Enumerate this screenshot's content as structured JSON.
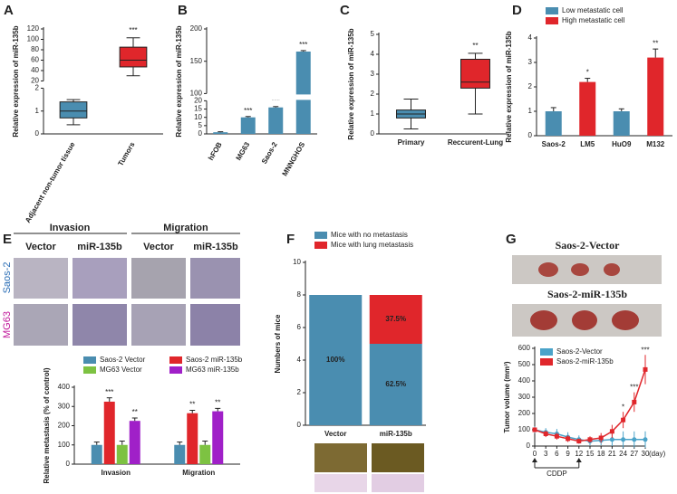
{
  "chart_data": [
    {
      "panel": "A",
      "type": "box",
      "ylabel": "Relative expression of miR-135b",
      "categories": [
        "Adjacent non-tumor tissue",
        "Tumors"
      ],
      "boxes": [
        {
          "min": 0.4,
          "q1": 0.7,
          "median": 1.0,
          "q3": 1.4,
          "max": 1.5
        },
        {
          "min": 30,
          "q1": 47,
          "median": 60,
          "q3": 85,
          "max": 103
        }
      ],
      "colors": [
        "#4a8db0",
        "#e0262b"
      ],
      "annotations": [
        null,
        "***"
      ],
      "ylim": [
        0,
        120
      ],
      "ybreak": [
        2,
        20
      ],
      "yticks": [
        0,
        1,
        2,
        20,
        40,
        60,
        80,
        100,
        120
      ]
    },
    {
      "panel": "B",
      "type": "bar",
      "ylabel": "Relative expression of miR-135b",
      "categories": [
        "hFOB",
        "MG63",
        "Saos-2",
        "MNNGHOS"
      ],
      "series": [
        {
          "color": "#4a8db0",
          "values": [
            1,
            10,
            16,
            165
          ],
          "errors": [
            0.3,
            0.5,
            0.5,
            1.5
          ],
          "annotations": [
            null,
            "***",
            "***",
            "***"
          ]
        }
      ],
      "ylim": [
        0,
        200
      ],
      "ybreak": [
        20,
        100
      ],
      "yticks": [
        0,
        5,
        10,
        15,
        20,
        100,
        150,
        200
      ]
    },
    {
      "panel": "C",
      "type": "box",
      "ylabel": "Relative expression of miR-135b",
      "categories": [
        "Primary",
        "Reccurent-Lung"
      ],
      "boxes": [
        {
          "min": 0.25,
          "q1": 0.8,
          "median": 1.0,
          "q3": 1.2,
          "max": 1.75
        },
        {
          "min": 1.0,
          "q1": 2.3,
          "median": 2.6,
          "q3": 3.75,
          "max": 4.05
        }
      ],
      "colors": [
        "#4a8db0",
        "#e0262b"
      ],
      "annotations": [
        null,
        "**"
      ],
      "ylim": [
        0,
        5
      ],
      "yticks": [
        0,
        1,
        2,
        3,
        4,
        5
      ]
    },
    {
      "panel": "D",
      "type": "bar",
      "ylabel": "Relative expression of miR-135b",
      "legend": "top",
      "categories": [
        "Saos-2",
        "LM5",
        "HuO9",
        "M132"
      ],
      "series": [
        {
          "name": "Low metastatic cell",
          "color": "#4a8db0",
          "values": [
            1.0,
            null,
            1.0,
            null
          ],
          "errors": [
            0.15,
            null,
            0.1,
            null
          ],
          "annotations": [
            null,
            null,
            null,
            null
          ]
        },
        {
          "name": "High metastatic cell",
          "color": "#e0262b",
          "values": [
            null,
            2.2,
            null,
            3.2
          ],
          "errors": [
            null,
            0.15,
            null,
            0.35
          ],
          "annotations": [
            null,
            "*",
            null,
            "**"
          ]
        }
      ],
      "ylim": [
        0,
        4
      ],
      "yticks": [
        0,
        1,
        2,
        3,
        4
      ]
    },
    {
      "panel": "E",
      "type": "bar",
      "ylabel": "Relative metastasis (% of control)",
      "legend": "top",
      "categories": [
        "Invasion",
        "Migration"
      ],
      "series": [
        {
          "name": "Saos-2 Vector",
          "color": "#4a8db0",
          "values": [
            100,
            100
          ],
          "errors": [
            15,
            15
          ],
          "annotations": [
            null,
            null
          ]
        },
        {
          "name": "Saos-2 miR-135b",
          "color": "#e0262b",
          "values": [
            325,
            265
          ],
          "errors": [
            20,
            15
          ],
          "annotations": [
            "***",
            "**"
          ]
        },
        {
          "name": "MG63 Vector",
          "color": "#7dc242",
          "values": [
            100,
            100
          ],
          "errors": [
            20,
            20
          ],
          "annotations": [
            null,
            null
          ]
        },
        {
          "name": "MG63 miR-135b",
          "color": "#a020c8",
          "values": [
            225,
            275
          ],
          "errors": [
            15,
            15
          ],
          "annotations": [
            "**",
            "**"
          ]
        }
      ],
      "ylim": [
        0,
        400
      ],
      "yticks": [
        0,
        100,
        200,
        300,
        400
      ]
    },
    {
      "panel": "F",
      "type": "stacked_bar",
      "ylabel": "Numbers of mice",
      "legend": "top",
      "categories": [
        "Vector",
        "miR-135b"
      ],
      "series": [
        {
          "name": "Mice with no metastasis",
          "color": "#4a8db0",
          "values": [
            8,
            5
          ],
          "labels": [
            "100%",
            "62.5%"
          ]
        },
        {
          "name": "Mice with lung metastasis",
          "color": "#e0262b",
          "values": [
            0,
            3
          ],
          "labels": [
            null,
            "37.5%"
          ]
        }
      ],
      "ylim": [
        0,
        10
      ],
      "yticks": [
        0,
        2,
        4,
        6,
        8,
        10
      ]
    },
    {
      "panel": "G",
      "type": "line",
      "ylabel": "Tumor volume (mm³)",
      "xlabel": "(day)",
      "legend": "upper left",
      "treatment": "CDDP",
      "treatment_period": [
        0,
        12
      ],
      "x": [
        0,
        3,
        6,
        9,
        12,
        15,
        18,
        21,
        24,
        27,
        30
      ],
      "series": [
        {
          "name": "Saos-2-Vector",
          "color": "#4aa3c9",
          "marker": "circle",
          "values": [
            100,
            85,
            75,
            55,
            40,
            30,
            35,
            40,
            40,
            40,
            40
          ],
          "errors": [
            20,
            25,
            30,
            30,
            25,
            25,
            30,
            40,
            50,
            50,
            50
          ],
          "annotations": [
            null,
            null,
            null,
            null,
            null,
            null,
            null,
            null,
            null,
            null,
            null
          ]
        },
        {
          "name": "Saos-2-miR-135b",
          "color": "#e0262b",
          "marker": "square",
          "values": [
            100,
            75,
            60,
            45,
            30,
            40,
            50,
            90,
            160,
            270,
            470
          ],
          "errors": [
            15,
            20,
            20,
            20,
            15,
            20,
            30,
            40,
            50,
            60,
            90
          ],
          "annotations": [
            null,
            null,
            null,
            null,
            null,
            null,
            null,
            null,
            "*",
            "***",
            "***"
          ]
        }
      ],
      "xlim": [
        0,
        30
      ],
      "xticks": [
        0,
        3,
        6,
        9,
        12,
        15,
        18,
        21,
        24,
        27,
        30
      ],
      "ylim": [
        0,
        600
      ],
      "yticks": [
        0,
        100,
        200,
        300,
        400,
        500,
        600
      ]
    }
  ],
  "panel_E_images": {
    "groups": [
      "Invasion",
      "Migration"
    ],
    "conditions": [
      "Vector",
      "miR-135b",
      "Vector",
      "miR-135b"
    ],
    "cell_lines": [
      "Saos-2",
      "MG63"
    ]
  },
  "panel_G_images": [
    "Saos-2-Vector",
    "Saos-2-miR-135b"
  ]
}
